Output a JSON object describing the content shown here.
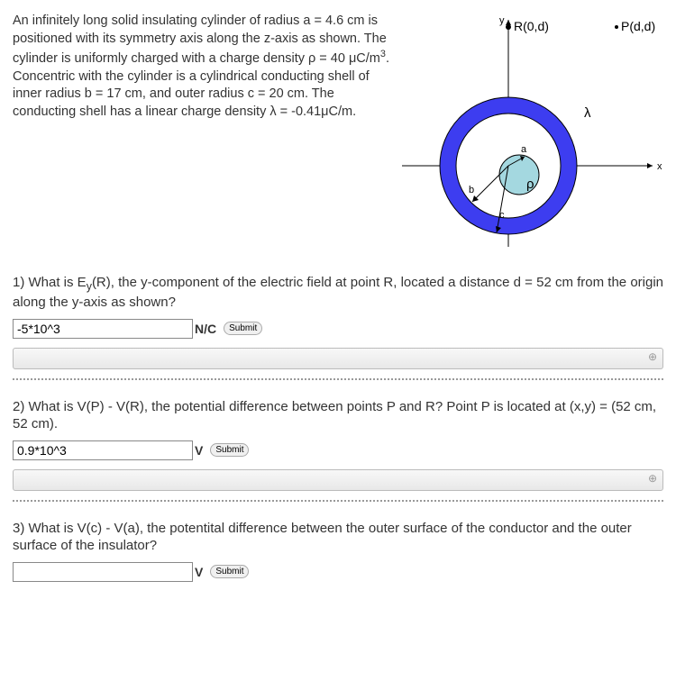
{
  "problem": {
    "text_html": "An infinitely long solid insulating cylinder of radius a = 4.6 cm is positioned with its symmetry axis along the z-axis as shown. The cylinder is uniformly charged with a charge density ρ = 40 μC/m<sup>3</sup>. Concentric with the cylinder is a cylindrical conducting shell of inner radius b = 17 cm, and outer radius c = 20 cm. The conducting shell has a linear charge density λ = -0.41μC/m."
  },
  "diagram": {
    "outer_ring_color": "#3d3df0",
    "inner_cyl_color": "#a4d8e0",
    "bg": "#ffffff",
    "axis_color": "#000000",
    "labels": {
      "R": "R(0,d)",
      "P": "P(d,d)",
      "lambda": "λ",
      "rho": "ρ",
      "a": "a",
      "b": "b",
      "c": "c",
      "x": "x",
      "y": "y"
    }
  },
  "questions": [
    {
      "num": "1)",
      "text_html": "What is E<sub>y</sub>(R), the y-component of the electric field at point R, located a distance d = 52 cm from the origin along the y-axis as shown?",
      "value": "-5*10^3",
      "unit": "N/C",
      "show_bar": true
    },
    {
      "num": "2)",
      "text_html": "What is V(P) - V(R), the potential difference between points P and R? Point P is located at (x,y) = (52 cm, 52 cm).",
      "value": "0.9*10^3",
      "unit": "V",
      "show_bar": true
    },
    {
      "num": "3)",
      "text_html": "What is V(c) - V(a), the potentital difference between the outer surface of the conductor and the outer surface of the insulator?",
      "value": "",
      "unit": "V",
      "show_bar": false
    }
  ],
  "submit_label": "Submit"
}
